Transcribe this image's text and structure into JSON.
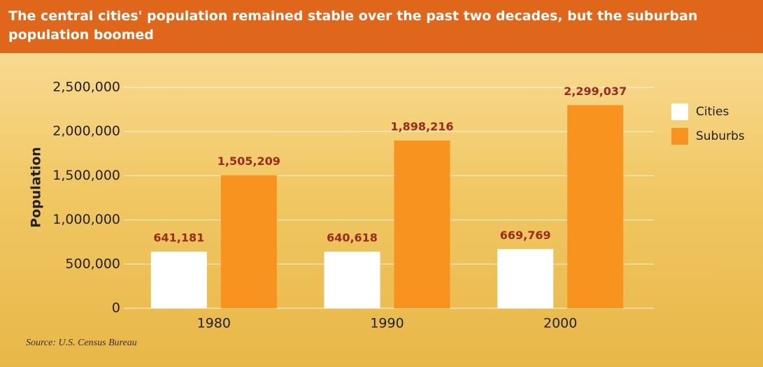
{
  "chart_data": {
    "type": "bar",
    "title": "The central cities' population remained stable over the past two decades, but the suburban population boomed",
    "ylabel": "Population",
    "source": "Source: U.S. Census Bureau",
    "categories": [
      "1980",
      "1990",
      "2000"
    ],
    "series": [
      {
        "name": "Cities",
        "color": "#ffffff",
        "values": [
          641181,
          640618,
          669769
        ],
        "value_labels": [
          "641,181",
          "640,618",
          "669,769"
        ]
      },
      {
        "name": "Suburbs",
        "color": "#f7931e",
        "values": [
          1505209,
          1898216,
          2299037
        ],
        "value_labels": [
          "1,505,209",
          "1,898,216",
          "2,299,037"
        ]
      }
    ],
    "ylim": [
      0,
      2500000
    ],
    "yticks": [
      0,
      {
        "value": 500000,
        "label": "500,000"
      },
      {
        "value": 1000000,
        "label": "1,000,000"
      },
      {
        "value": 1500000,
        "label": "1,500,000"
      },
      {
        "value": 2000000,
        "label": "2,000,000"
      },
      {
        "value": 2500000,
        "label": "2,500,000"
      }
    ],
    "grid": true
  }
}
